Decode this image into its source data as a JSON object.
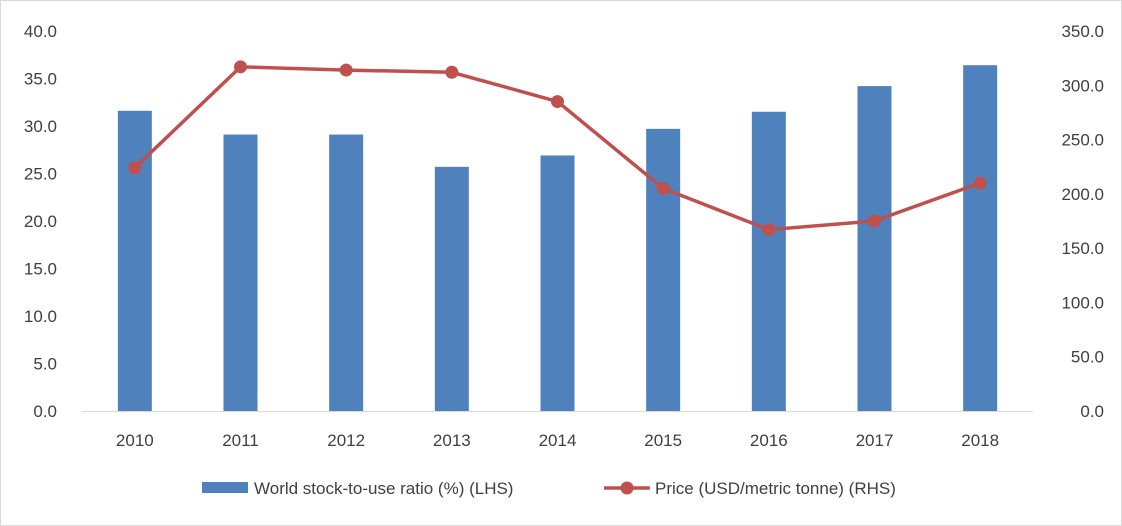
{
  "chart_data": {
    "type": "bar",
    "title": "",
    "xlabel": "",
    "ylabel": "",
    "categories": [
      "2010",
      "2011",
      "2012",
      "2013",
      "2014",
      "2015",
      "2016",
      "2017",
      "2018"
    ],
    "series": [
      {
        "name": "World stock-to-use ratio (%) (LHS)",
        "type": "bar",
        "axis": "left",
        "color": "#4f81bd",
        "values": [
          31.6,
          29.1,
          29.1,
          25.7,
          26.9,
          29.7,
          31.5,
          34.2,
          36.4
        ]
      },
      {
        "name": "Price (USD/metric tonne) (RHS)",
        "type": "line",
        "axis": "right",
        "color": "#c0504d",
        "marker": "circle",
        "values": [
          224,
          317,
          314,
          312,
          285,
          205,
          167,
          175,
          210
        ]
      }
    ],
    "y_left": {
      "range": [
        0,
        40
      ],
      "ticks": [
        "0.0",
        "5.0",
        "10.0",
        "15.0",
        "20.0",
        "25.0",
        "30.0",
        "35.0",
        "40.0"
      ]
    },
    "y_right": {
      "range": [
        0,
        350
      ],
      "ticks": [
        "0.0",
        "50.0",
        "100.0",
        "150.0",
        "200.0",
        "250.0",
        "300.0",
        "350.0"
      ]
    },
    "grid": false,
    "legend": "bottom",
    "axis_color": "#d9d9d9",
    "text_color": "#404040"
  }
}
